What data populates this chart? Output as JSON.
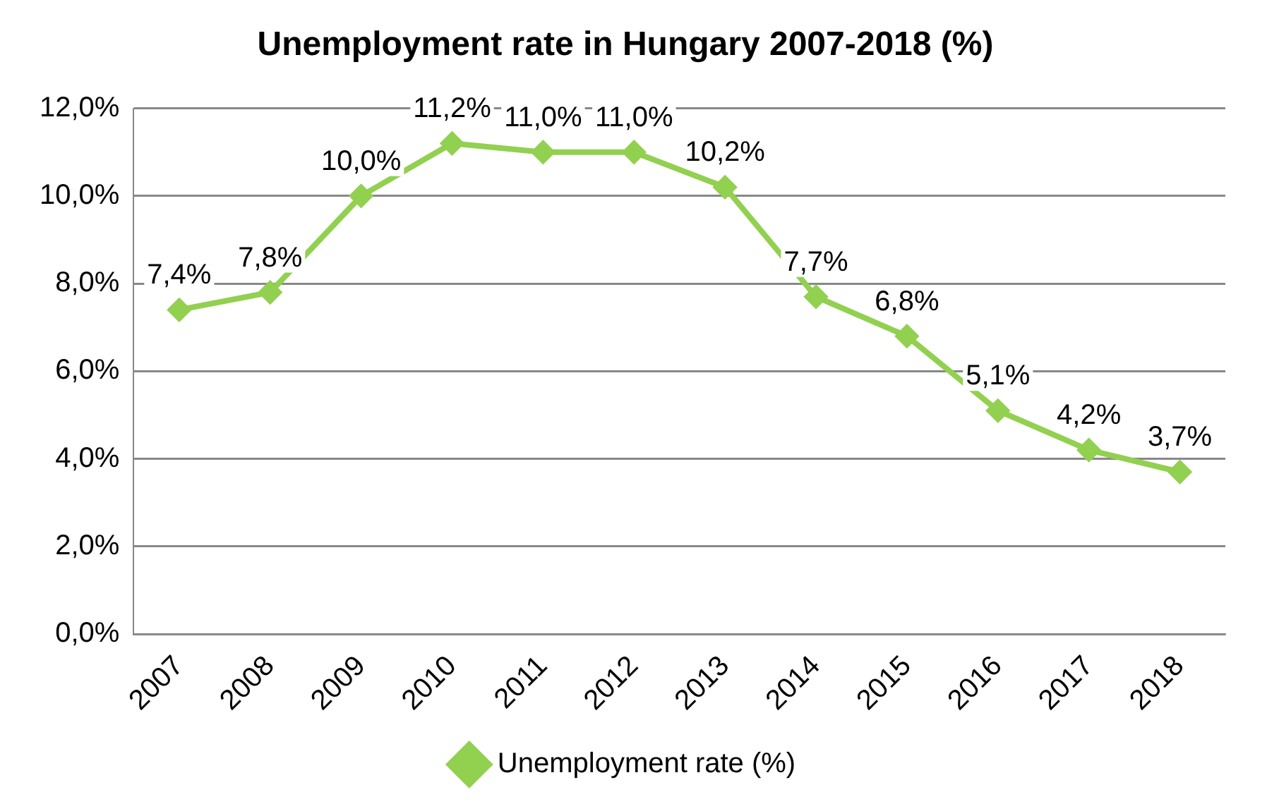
{
  "chart_data": {
    "type": "line",
    "title": "Unemployment rate in Hungary 2007-2018 (%)",
    "categories": [
      "2007",
      "2008",
      "2009",
      "2010",
      "2011",
      "2012",
      "2013",
      "2014",
      "2015",
      "2016",
      "2017",
      "2018"
    ],
    "series": [
      {
        "name": "Unemployment rate (%)",
        "color": "#92d050",
        "values": [
          7.4,
          7.8,
          10.0,
          11.2,
          11.0,
          11.0,
          10.2,
          7.7,
          6.8,
          5.1,
          4.2,
          3.7
        ],
        "value_labels": [
          "7,4%",
          "7,8%",
          "10,0%",
          "11,2%",
          "11,0%",
          "11,0%",
          "10,2%",
          "7,7%",
          "6,8%",
          "5,1%",
          "4,2%",
          "3,7%"
        ]
      }
    ],
    "ylim": [
      0,
      12
    ],
    "yticks": [
      {
        "value": 0,
        "label": "0,0%"
      },
      {
        "value": 2,
        "label": "2,0%"
      },
      {
        "value": 4,
        "label": "4,0%"
      },
      {
        "value": 6,
        "label": "6,0%"
      },
      {
        "value": 8,
        "label": "8,0%"
      },
      {
        "value": 10,
        "label": "10,0%"
      },
      {
        "value": 12,
        "label": "12,0%"
      }
    ],
    "grid": "y",
    "legend": "bottom",
    "marker": "diamond",
    "line_style": "solid"
  }
}
